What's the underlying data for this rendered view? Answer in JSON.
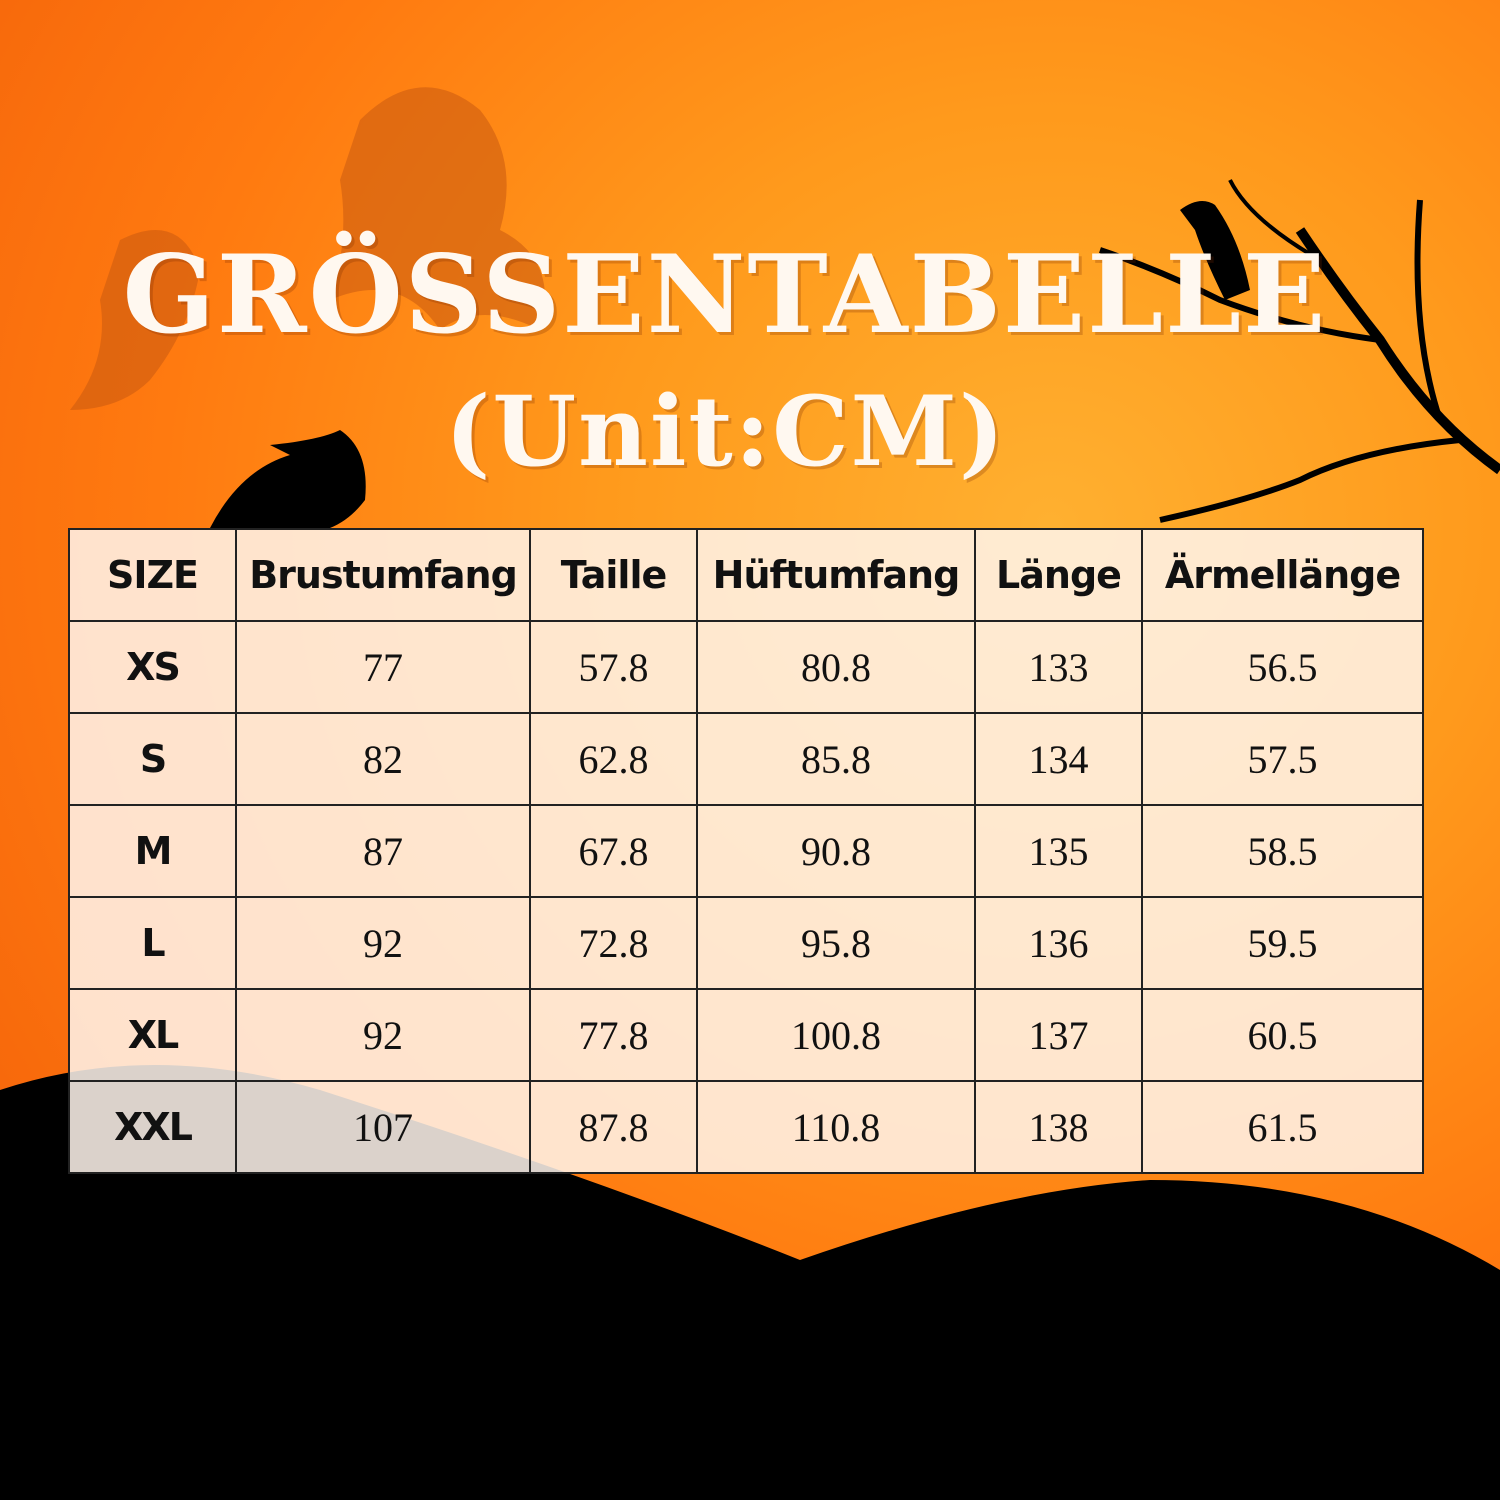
{
  "title": "GRÖSSENTABELLE",
  "subtitle": "(Unit:CM)",
  "table": {
    "headers": [
      "SIZE",
      "Brustumfang",
      "Taille",
      "Hüftumfang",
      "Länge",
      "Ärmellänge"
    ],
    "rows": [
      [
        "XS",
        "77",
        "57.8",
        "80.8",
        "133",
        "56.5"
      ],
      [
        "S",
        "82",
        "62.8",
        "85.8",
        "134",
        "57.5"
      ],
      [
        "M",
        "87",
        "67.8",
        "90.8",
        "135",
        "58.5"
      ],
      [
        "L",
        "92",
        "72.8",
        "95.8",
        "136",
        "59.5"
      ],
      [
        "XL",
        "92",
        "77.8",
        "100.8",
        "137",
        "60.5"
      ],
      [
        "XXL",
        "107",
        "87.8",
        "110.8",
        "138",
        "61.5"
      ]
    ]
  },
  "colors": {
    "background": "#ff8a14",
    "silhouette": "#000000",
    "title": "#fff8f0"
  }
}
